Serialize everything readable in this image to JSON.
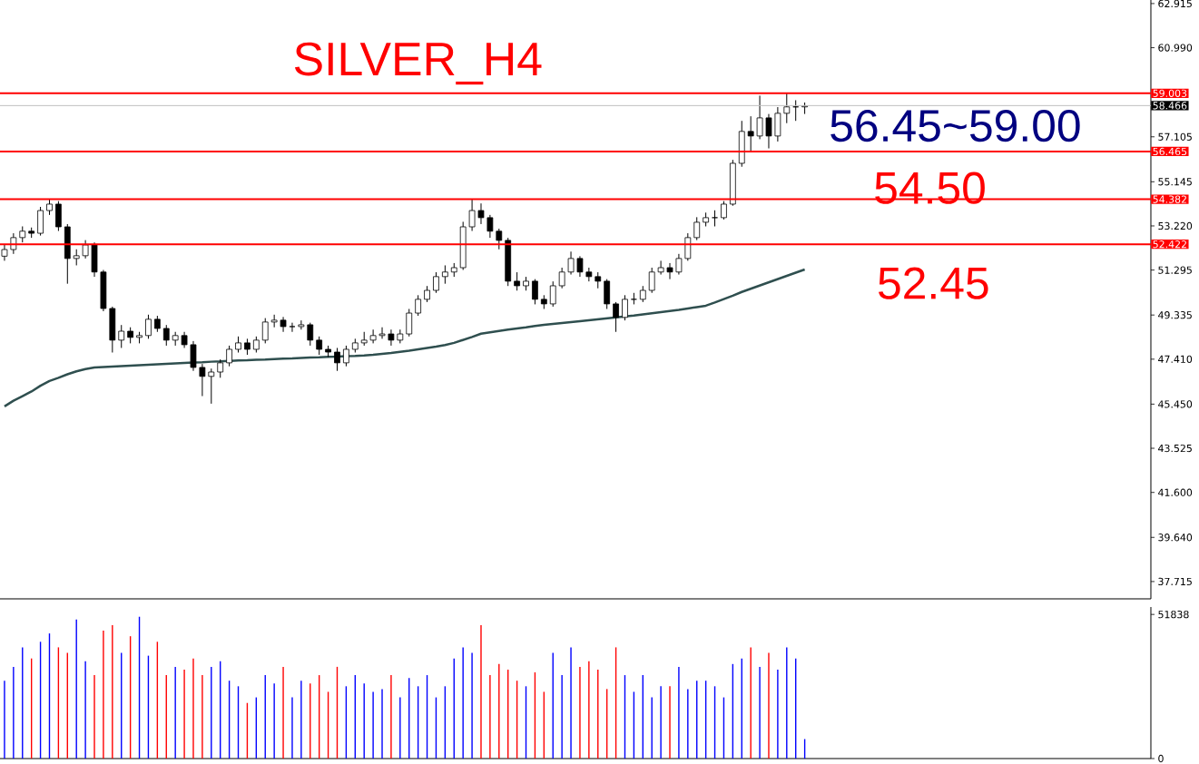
{
  "chart_data": [
    {
      "type": "candlestick",
      "title": "SILVER_H4",
      "annotations": [
        "56.45~59.00",
        "54.50",
        "52.45"
      ],
      "categories": [
        null,
        null,
        null,
        null,
        null,
        null,
        null,
        null,
        null,
        null,
        null,
        null,
        null,
        null,
        null,
        null,
        null,
        null,
        null,
        null,
        null,
        null,
        null,
        null,
        null,
        null,
        null,
        null,
        null,
        null,
        null,
        null,
        null,
        null,
        null,
        null,
        null,
        null,
        null,
        null,
        null,
        null,
        null,
        null,
        null,
        null,
        null,
        null,
        null,
        null,
        null,
        null,
        null,
        null,
        null,
        null,
        null,
        null,
        null,
        null,
        null,
        null,
        null,
        null,
        null,
        null,
        null,
        null,
        null,
        null,
        null,
        null,
        null,
        null,
        null,
        null,
        null,
        null,
        null,
        null,
        null,
        null,
        null,
        null,
        null,
        null,
        null,
        null,
        null,
        null,
        null,
        null,
        null,
        null,
        null,
        null,
        null,
        null,
        null,
        null,
        null,
        null,
        null,
        null,
        null,
        null,
        null,
        null,
        null,
        null,
        null,
        null,
        null,
        null,
        null,
        null,
        null,
        null,
        null,
        null,
        null,
        null,
        null,
        null,
        null,
        null,
        null,
        null
      ],
      "ohlc": [
        [
          51.9,
          52.4,
          51.7,
          52.19
        ],
        [
          52.19,
          52.9,
          52.0,
          52.71
        ],
        [
          52.71,
          53.2,
          52.5,
          52.99
        ],
        [
          52.99,
          53.15,
          52.7,
          52.9
        ],
        [
          52.9,
          54.05,
          52.8,
          53.89
        ],
        [
          53.89,
          54.4,
          53.7,
          54.17
        ],
        [
          54.17,
          54.3,
          53.0,
          53.18
        ],
        [
          53.18,
          53.3,
          50.7,
          51.8
        ],
        [
          51.8,
          52.2,
          51.5,
          51.92
        ],
        [
          51.92,
          52.6,
          51.8,
          52.39
        ],
        [
          52.39,
          52.5,
          51.0,
          51.21
        ],
        [
          51.21,
          51.3,
          49.5,
          49.62
        ],
        [
          49.62,
          49.7,
          47.7,
          48.24
        ],
        [
          48.24,
          48.9,
          47.9,
          48.63
        ],
        [
          48.63,
          48.8,
          48.1,
          48.36
        ],
        [
          48.36,
          48.6,
          48.1,
          48.44
        ],
        [
          48.44,
          49.35,
          48.3,
          49.15
        ],
        [
          49.15,
          49.3,
          48.6,
          48.75
        ],
        [
          48.75,
          48.9,
          48.0,
          48.24
        ],
        [
          48.24,
          48.6,
          48.0,
          48.44
        ],
        [
          48.44,
          48.6,
          47.9,
          48.04
        ],
        [
          48.04,
          48.2,
          46.9,
          47.05
        ],
        [
          47.05,
          47.2,
          45.8,
          46.66
        ],
        [
          46.66,
          47.0,
          45.47,
          46.85
        ],
        [
          46.85,
          47.4,
          46.6,
          47.25
        ],
        [
          47.25,
          48.0,
          47.1,
          47.84
        ],
        [
          47.84,
          48.4,
          47.7,
          48.12
        ],
        [
          48.12,
          48.3,
          47.6,
          47.84
        ],
        [
          47.84,
          48.4,
          47.7,
          48.24
        ],
        [
          48.24,
          49.2,
          48.1,
          49.03
        ],
        [
          49.03,
          49.35,
          48.8,
          49.11
        ],
        [
          49.11,
          49.25,
          48.6,
          48.83
        ],
        [
          48.83,
          49.0,
          48.6,
          48.83
        ],
        [
          48.83,
          49.1,
          48.7,
          48.91
        ],
        [
          48.91,
          49.0,
          48.0,
          48.24
        ],
        [
          48.24,
          48.4,
          47.6,
          47.84
        ],
        [
          47.84,
          48.0,
          47.5,
          47.72
        ],
        [
          47.72,
          47.9,
          46.9,
          47.25
        ],
        [
          47.25,
          48.0,
          47.1,
          47.84
        ],
        [
          47.84,
          48.3,
          47.7,
          48.12
        ],
        [
          48.12,
          48.6,
          48.0,
          48.24
        ],
        [
          48.24,
          48.7,
          48.1,
          48.44
        ],
        [
          48.44,
          48.8,
          48.3,
          48.51
        ],
        [
          48.51,
          48.7,
          48.0,
          48.24
        ],
        [
          48.24,
          48.7,
          48.1,
          48.51
        ],
        [
          48.51,
          49.6,
          48.4,
          49.42
        ],
        [
          49.42,
          50.2,
          49.3,
          50.02
        ],
        [
          50.02,
          50.6,
          49.9,
          50.41
        ],
        [
          50.41,
          51.2,
          50.3,
          51.01
        ],
        [
          51.01,
          51.5,
          50.7,
          51.21
        ],
        [
          51.21,
          51.6,
          51.0,
          51.4
        ],
        [
          51.4,
          53.4,
          51.3,
          53.18
        ],
        [
          53.18,
          54.4,
          53.0,
          53.89
        ],
        [
          53.89,
          54.2,
          53.3,
          53.58
        ],
        [
          53.58,
          53.7,
          52.7,
          52.99
        ],
        [
          52.99,
          53.1,
          52.2,
          52.59
        ],
        [
          52.59,
          52.7,
          50.6,
          50.81
        ],
        [
          50.81,
          51.2,
          50.4,
          50.61
        ],
        [
          50.61,
          51.0,
          50.4,
          50.81
        ],
        [
          50.81,
          50.9,
          49.8,
          50.02
        ],
        [
          50.02,
          50.2,
          49.6,
          49.82
        ],
        [
          49.82,
          50.8,
          49.7,
          50.61
        ],
        [
          50.61,
          51.4,
          50.5,
          51.21
        ],
        [
          51.21,
          52.1,
          51.1,
          51.8
        ],
        [
          51.8,
          51.9,
          51.0,
          51.21
        ],
        [
          51.21,
          51.4,
          50.8,
          51.01
        ],
        [
          51.01,
          51.2,
          50.5,
          50.81
        ],
        [
          50.81,
          50.9,
          49.6,
          49.82
        ],
        [
          49.82,
          49.9,
          48.6,
          49.23
        ],
        [
          49.23,
          50.2,
          49.1,
          50.02
        ],
        [
          50.02,
          50.3,
          49.8,
          50.02
        ],
        [
          50.02,
          50.6,
          49.9,
          50.41
        ],
        [
          50.41,
          51.4,
          50.3,
          51.21
        ],
        [
          51.21,
          51.7,
          51.1,
          51.4
        ],
        [
          51.4,
          51.6,
          50.9,
          51.21
        ],
        [
          51.21,
          52.0,
          51.1,
          51.8
        ],
        [
          51.8,
          52.9,
          51.7,
          52.71
        ],
        [
          52.71,
          53.6,
          52.6,
          53.38
        ],
        [
          53.38,
          53.8,
          53.2,
          53.58
        ],
        [
          53.58,
          53.9,
          53.2,
          53.58
        ],
        [
          53.58,
          54.3,
          53.5,
          54.17
        ],
        [
          54.17,
          56.1,
          54.1,
          55.95
        ],
        [
          55.95,
          57.8,
          55.8,
          57.34
        ],
        [
          57.34,
          58.0,
          56.5,
          57.14
        ],
        [
          57.14,
          58.9,
          57.0,
          57.93
        ],
        [
          57.93,
          58.1,
          56.6,
          57.14
        ],
        [
          57.14,
          58.4,
          56.9,
          58.13
        ],
        [
          58.13,
          59.0,
          57.7,
          58.41
        ],
        [
          58.41,
          58.7,
          57.8,
          58.41
        ],
        [
          58.41,
          58.6,
          58.1,
          58.45
        ],
        null,
        null,
        null,
        null,
        null,
        null,
        null,
        null,
        null,
        null,
        null,
        null,
        null,
        null,
        null,
        null,
        null,
        null,
        null,
        null,
        null,
        null,
        null,
        null,
        null,
        null,
        null,
        null,
        null,
        null,
        null,
        null,
        null,
        null,
        null,
        null,
        null,
        null
      ],
      "series": [
        {
          "type": "line",
          "color": "#2f4f4f",
          "values": [
            45.35,
            45.6,
            45.8,
            46.0,
            46.25,
            46.46,
            46.6,
            46.75,
            46.88,
            46.98,
            47.05,
            47.07,
            47.09,
            47.11,
            47.13,
            47.15,
            47.17,
            47.19,
            47.21,
            47.23,
            47.25,
            47.27,
            47.28,
            47.3,
            47.31,
            47.33,
            47.35,
            47.36,
            47.38,
            47.39,
            47.41,
            47.43,
            47.44,
            47.46,
            47.48,
            47.49,
            47.51,
            47.52,
            47.54,
            47.55,
            47.57,
            47.6,
            47.64,
            47.68,
            47.73,
            47.78,
            47.84,
            47.9,
            47.96,
            48.03,
            48.12,
            48.25,
            48.38,
            48.52,
            48.58,
            48.64,
            48.7,
            48.75,
            48.8,
            48.86,
            48.91,
            48.95,
            48.99,
            49.03,
            49.07,
            49.11,
            49.15,
            49.19,
            49.23,
            49.27,
            49.31,
            49.36,
            49.41,
            49.46,
            49.51,
            49.56,
            49.62,
            49.68,
            49.74,
            49.88,
            50.03,
            50.18,
            50.34,
            50.48,
            50.62,
            50.76,
            50.9,
            51.04,
            51.18,
            51.32,
            null,
            null,
            null,
            null,
            null,
            null,
            null,
            null,
            null,
            null,
            null,
            null,
            null,
            null,
            null,
            null,
            null,
            null,
            null,
            null,
            null,
            null,
            null,
            null,
            null,
            null,
            null,
            null,
            null,
            null,
            null,
            null,
            null,
            null,
            null,
            null,
            null,
            null
          ]
        }
      ],
      "ylim": [
        36.96,
        63.07
      ],
      "yticks": [
        {
          "value": 62.915,
          "label": "62.915"
        },
        {
          "value": 60.99,
          "label": "60.990"
        },
        {
          "value": 57.105,
          "label": "57.105"
        },
        {
          "value": 55.145,
          "label": "55.145"
        },
        {
          "value": 53.22,
          "label": "53.220"
        },
        {
          "value": 51.295,
          "label": "51.295"
        },
        {
          "value": 49.335,
          "label": "49.335"
        },
        {
          "value": 47.41,
          "label": "47.410"
        },
        {
          "value": 45.45,
          "label": "45.450"
        },
        {
          "value": 43.525,
          "label": "43.525"
        },
        {
          "value": 41.6,
          "label": "41.600"
        },
        {
          "value": 39.64,
          "label": "39.640"
        },
        {
          "value": 37.715,
          "label": "37.715"
        }
      ],
      "ref_lines": [
        {
          "axis": "y",
          "value": 59.003,
          "label": "59.003",
          "color": "#ff0000"
        },
        {
          "axis": "y",
          "value": 58.466,
          "label": "58.466",
          "color": "#c0c0c0"
        },
        {
          "axis": "y",
          "value": 56.465,
          "label": "56.465",
          "color": "#ff0000"
        },
        {
          "axis": "y",
          "value": 54.382,
          "label": "54.382",
          "color": "#ff0000"
        },
        {
          "axis": "y",
          "value": 52.422,
          "label": "52.422",
          "color": "#ff0000"
        }
      ],
      "tick_labels": "y"
    },
    {
      "type": "bar",
      "categories": [
        null,
        null,
        null,
        null,
        null,
        null,
        null,
        null,
        null,
        null,
        null,
        null,
        null,
        null,
        null,
        null,
        null,
        null,
        null,
        null,
        null,
        null,
        null,
        null,
        null,
        null,
        null,
        null,
        null,
        null,
        null,
        null,
        null,
        null,
        null,
        null,
        null,
        null,
        null,
        null,
        null,
        null,
        null,
        null,
        null,
        null,
        null,
        null,
        null,
        null,
        null,
        null,
        null,
        null,
        null,
        null,
        null,
        null,
        null,
        null,
        null,
        null,
        null,
        null,
        null,
        null,
        null,
        null,
        null,
        null,
        null,
        null,
        null,
        null,
        null,
        null,
        null,
        null,
        null,
        null,
        null,
        null,
        null,
        null,
        null,
        null,
        null,
        null,
        null,
        null,
        null,
        null,
        null,
        null,
        null,
        null,
        null,
        null,
        null,
        null,
        null,
        null,
        null,
        null,
        null,
        null,
        null,
        null,
        null,
        null,
        null,
        null,
        null,
        null,
        null,
        null,
        null,
        null,
        null,
        null,
        null,
        null,
        null,
        null,
        null,
        null,
        null,
        null
      ],
      "values": [
        28000,
        33000,
        40000,
        36000,
        42000,
        45000,
        40000,
        38000,
        50000,
        35000,
        30000,
        46000,
        48000,
        38000,
        44000,
        51000,
        37000,
        42000,
        30000,
        33000,
        32000,
        36000,
        30000,
        33000,
        35000,
        28000,
        26000,
        20000,
        22000,
        30000,
        27000,
        33000,
        22000,
        28000,
        27000,
        30000,
        24000,
        33000,
        26000,
        30000,
        27000,
        24000,
        25000,
        30000,
        22000,
        29000,
        26000,
        30000,
        22000,
        26000,
        36000,
        40000,
        38000,
        48000,
        30000,
        34000,
        32000,
        28000,
        26000,
        31000,
        24000,
        38000,
        30000,
        40000,
        33000,
        35000,
        32000,
        25000,
        40000,
        30000,
        24000,
        30000,
        22000,
        26000,
        26000,
        33000,
        25000,
        28000,
        28000,
        26000,
        22000,
        34000,
        36000,
        40000,
        33000,
        38000,
        32000,
        40000,
        36000,
        7000,
        null,
        null,
        null,
        null,
        null,
        null,
        null,
        null,
        null,
        null,
        null,
        null,
        null,
        null,
        null,
        null,
        null,
        null,
        null,
        null,
        null,
        null,
        null,
        null,
        null,
        null,
        null,
        null,
        null,
        null,
        null,
        null,
        null,
        null,
        null,
        null,
        null,
        null
      ],
      "colors": [
        "#0000ff",
        "#0000ff",
        "#0000ff",
        "#ff0000",
        "#0000ff",
        "#0000ff",
        "#ff0000",
        "#ff0000",
        "#0000ff",
        "#0000ff",
        "#ff0000",
        "#ff0000",
        "#ff0000",
        "#0000ff",
        "#ff0000",
        "#0000ff",
        "#0000ff",
        "#ff0000",
        "#ff0000",
        "#0000ff",
        "#ff0000",
        "#ff0000",
        "#ff0000",
        "#0000ff",
        "#0000ff",
        "#0000ff",
        "#0000ff",
        "#ff0000",
        "#0000ff",
        "#0000ff",
        "#0000ff",
        "#ff0000",
        "#0000ff",
        "#0000ff",
        "#ff0000",
        "#ff0000",
        "#ff0000",
        "#ff0000",
        "#0000ff",
        "#0000ff",
        "#0000ff",
        "#0000ff",
        "#0000ff",
        "#ff0000",
        "#0000ff",
        "#0000ff",
        "#0000ff",
        "#0000ff",
        "#0000ff",
        "#0000ff",
        "#0000ff",
        "#0000ff",
        "#0000ff",
        "#ff0000",
        "#ff0000",
        "#ff0000",
        "#ff0000",
        "#ff0000",
        "#0000ff",
        "#ff0000",
        "#ff0000",
        "#0000ff",
        "#0000ff",
        "#0000ff",
        "#ff0000",
        "#ff0000",
        "#ff0000",
        "#ff0000",
        "#ff0000",
        "#0000ff",
        "#0000ff",
        "#0000ff",
        "#0000ff",
        "#0000ff",
        "#ff0000",
        "#0000ff",
        "#0000ff",
        "#0000ff",
        "#0000ff",
        "#0000ff",
        "#0000ff",
        "#0000ff",
        "#0000ff",
        "#ff0000",
        "#0000ff",
        "#ff0000",
        "#0000ff",
        "#0000ff",
        "#0000ff",
        "#0000ff",
        null,
        null,
        null,
        null,
        null,
        null,
        null,
        null,
        null,
        null,
        null,
        null,
        null,
        null,
        null,
        null,
        null,
        null,
        null,
        null,
        null,
        null,
        null,
        null,
        null,
        null,
        null,
        null,
        null,
        null,
        null,
        null,
        null,
        null,
        null,
        null,
        null,
        null
      ],
      "ylim": [
        0,
        54500
      ],
      "yticks": [
        0,
        51838
      ],
      "tick_labels": "y"
    }
  ]
}
